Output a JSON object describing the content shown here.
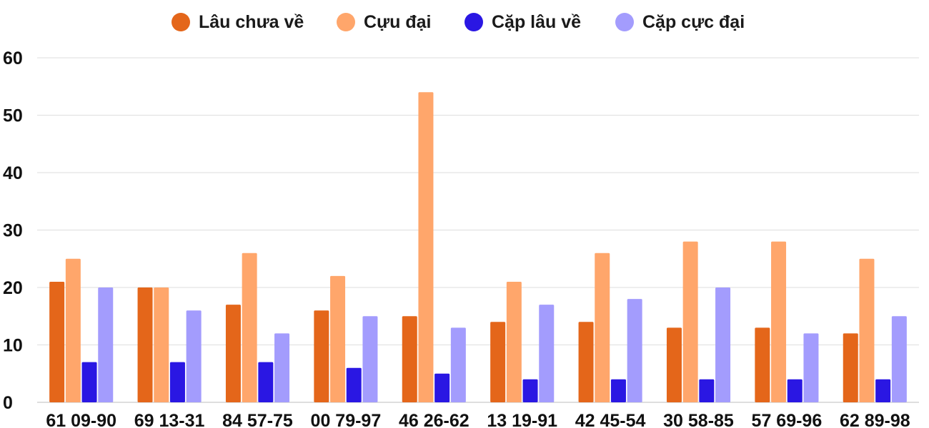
{
  "chart_data": {
    "type": "bar",
    "categories": [
      "61 09-90",
      "69 13-31",
      "84 57-75",
      "00 79-97",
      "46 26-62",
      "13 19-91",
      "42 45-54",
      "30 58-85",
      "57 69-96",
      "62 89-98"
    ],
    "series": [
      {
        "name": "Lâu chưa về",
        "color": "#e4661a",
        "values": [
          21,
          20,
          17,
          16,
          15,
          14,
          14,
          13,
          13,
          12
        ]
      },
      {
        "name": "Cựu đại",
        "color": "#ffa66b",
        "values": [
          25,
          20,
          26,
          22,
          54,
          21,
          26,
          28,
          28,
          25
        ]
      },
      {
        "name": "Cặp lâu về",
        "color": "#2a17e3",
        "values": [
          7,
          7,
          7,
          6,
          5,
          4,
          4,
          4,
          4,
          4
        ]
      },
      {
        "name": "Cặp cực đại",
        "color": "#a39cfd",
        "values": [
          20,
          16,
          12,
          15,
          13,
          17,
          18,
          20,
          12,
          15
        ]
      }
    ],
    "ylim": [
      0,
      60
    ],
    "yticks": [
      0,
      10,
      20,
      30,
      40,
      50,
      60
    ],
    "grid": true,
    "legend_position": "top-center"
  }
}
